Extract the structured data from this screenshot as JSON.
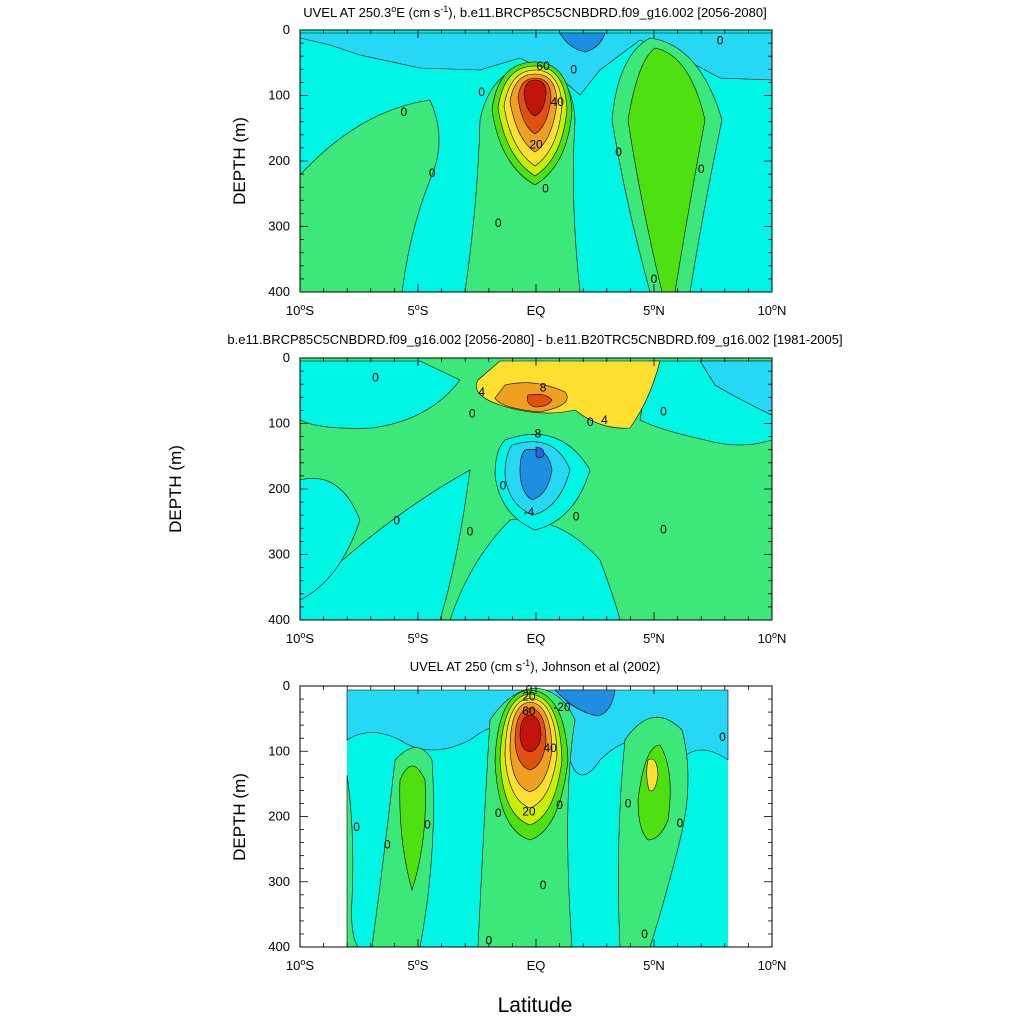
{
  "figure": {
    "xlabel": "Latitude",
    "palette": {
      "neg3": "#2d5fd6",
      "neg2": "#1e8fe0",
      "neg1": "#27d8f6",
      "zero": "#00f5e4",
      "pos1": "#3ce87a",
      "pos2": "#4fe012",
      "pos3": "#c8f000",
      "pos4": "#ffe030",
      "pos5": "#f0a020",
      "pos6": "#e05010",
      "pos7": "#c0150c"
    }
  },
  "chart_data": [
    {
      "type": "contour",
      "title_prefix": "UVEL AT 250.3",
      "title_suffix": "E (cm s",
      "title_sup1": "o",
      "title_sup2": "-1",
      "title_rest": "), b.e11.BRCP85C5CNBDRD.f09_g16.002 [2056-2080]",
      "ylabel": "DEPTH (m)",
      "xlim": [
        -10,
        10
      ],
      "ylim": [
        400,
        0
      ],
      "y_ticks": [
        "0",
        "100",
        "200",
        "300",
        "400"
      ],
      "x_ticks": [
        {
          "value": -10,
          "label": "10",
          "suffix": "S"
        },
        {
          "value": -5,
          "label": "5",
          "suffix": "S"
        },
        {
          "value": 0,
          "label": "EQ",
          "suffix": ""
        },
        {
          "value": 5,
          "label": "5",
          "suffix": "N"
        },
        {
          "value": 10,
          "label": "10",
          "suffix": "N"
        }
      ],
      "contour_labels": [
        {
          "text": "60",
          "lat": 0.3,
          "depth": 55
        },
        {
          "text": "40",
          "lat": 0.9,
          "depth": 110
        },
        {
          "text": "20",
          "lat": 0.0,
          "depth": 175
        },
        {
          "text": "0",
          "lat": 1.6,
          "depth": 60
        },
        {
          "text": "0",
          "lat": -2.3,
          "depth": 95
        },
        {
          "text": "0",
          "lat": -5.6,
          "depth": 125
        },
        {
          "text": "0",
          "lat": -4.4,
          "depth": 218
        },
        {
          "text": "0",
          "lat": 0.4,
          "depth": 242
        },
        {
          "text": "0",
          "lat": -1.6,
          "depth": 295
        },
        {
          "text": "0",
          "lat": 3.5,
          "depth": 186
        },
        {
          "text": "0",
          "lat": 7.0,
          "depth": 212
        },
        {
          "text": "0",
          "lat": 7.8,
          "depth": 16
        },
        {
          "text": "0",
          "lat": 5.0,
          "depth": 380
        }
      ]
    },
    {
      "type": "contour",
      "title": "b.e11.BRCP85C5CNBDRD.f09_g16.002 [2056-2080] - b.e11.B20TRC5CNBDRD.f09_g16.002 [1981-2005]",
      "ylabel": "DEPTH (m)",
      "xlim": [
        -10,
        10
      ],
      "ylim": [
        400,
        0
      ],
      "y_ticks": [
        "0",
        "100",
        "200",
        "300",
        "400"
      ],
      "x_ticks": [
        {
          "value": -10,
          "label": "10",
          "suffix": "S"
        },
        {
          "value": -5,
          "label": "5",
          "suffix": "S"
        },
        {
          "value": 0,
          "label": "EQ",
          "suffix": ""
        },
        {
          "value": 5,
          "label": "5",
          "suffix": "N"
        },
        {
          "value": 10,
          "label": "10",
          "suffix": "N"
        }
      ],
      "contour_labels": [
        {
          "text": "8",
          "lat": 0.3,
          "depth": 45
        },
        {
          "text": "4",
          "lat": -2.3,
          "depth": 52
        },
        {
          "text": "4",
          "lat": 2.9,
          "depth": 95
        },
        {
          "text": "0",
          "lat": 2.3,
          "depth": 98
        },
        {
          "text": "-8",
          "lat": 0.0,
          "depth": 115
        },
        {
          "text": "-4",
          "lat": -0.3,
          "depth": 235
        },
        {
          "text": "0",
          "lat": -6.8,
          "depth": 30
        },
        {
          "text": "0",
          "lat": -2.7,
          "depth": 85
        },
        {
          "text": "0",
          "lat": 5.4,
          "depth": 82
        },
        {
          "text": "0",
          "lat": -1.4,
          "depth": 195
        },
        {
          "text": "0",
          "lat": -5.9,
          "depth": 248
        },
        {
          "text": "0",
          "lat": -2.8,
          "depth": 265
        },
        {
          "text": "0",
          "lat": 1.7,
          "depth": 242
        },
        {
          "text": "0",
          "lat": 5.4,
          "depth": 262
        }
      ]
    },
    {
      "type": "contour",
      "title_prefix": "UVEL AT 250 (cm s",
      "title_sup": "-1",
      "title_rest": "), Johnson et al (2002)",
      "ylabel": "DEPTH (m)",
      "xlim": [
        -10,
        10
      ],
      "ylim": [
        400,
        0
      ],
      "y_ticks": [
        "0",
        "100",
        "200",
        "300",
        "400"
      ],
      "x_ticks": [
        {
          "value": -10,
          "label": "10",
          "suffix": "S"
        },
        {
          "value": -5,
          "label": "5",
          "suffix": "S"
        },
        {
          "value": 0,
          "label": "EQ",
          "suffix": ""
        },
        {
          "value": 5,
          "label": "5",
          "suffix": "N"
        },
        {
          "value": 10,
          "label": "10",
          "suffix": "N"
        }
      ],
      "contour_labels": [
        {
          "text": "20",
          "lat": -0.3,
          "depth": 16
        },
        {
          "text": "60",
          "lat": -0.3,
          "depth": 38
        },
        {
          "text": "40",
          "lat": 0.6,
          "depth": 95
        },
        {
          "text": "20",
          "lat": -0.3,
          "depth": 192
        },
        {
          "text": "-20",
          "lat": 1.1,
          "depth": 32
        },
        {
          "text": "0",
          "lat": -0.3,
          "depth": 5
        },
        {
          "text": "0",
          "lat": 0.3,
          "depth": 305
        },
        {
          "text": "0",
          "lat": -1.6,
          "depth": 195
        },
        {
          "text": "0",
          "lat": 1.0,
          "depth": 182
        },
        {
          "text": "0",
          "lat": -7.6,
          "depth": 216
        },
        {
          "text": "0",
          "lat": -6.3,
          "depth": 243
        },
        {
          "text": "0",
          "lat": -4.6,
          "depth": 212
        },
        {
          "text": "0",
          "lat": 3.9,
          "depth": 180
        },
        {
          "text": "0",
          "lat": 6.1,
          "depth": 210
        },
        {
          "text": "0",
          "lat": 7.9,
          "depth": 78
        },
        {
          "text": "0",
          "lat": -2.0,
          "depth": 390
        },
        {
          "text": "0",
          "lat": 4.6,
          "depth": 380
        }
      ]
    }
  ]
}
